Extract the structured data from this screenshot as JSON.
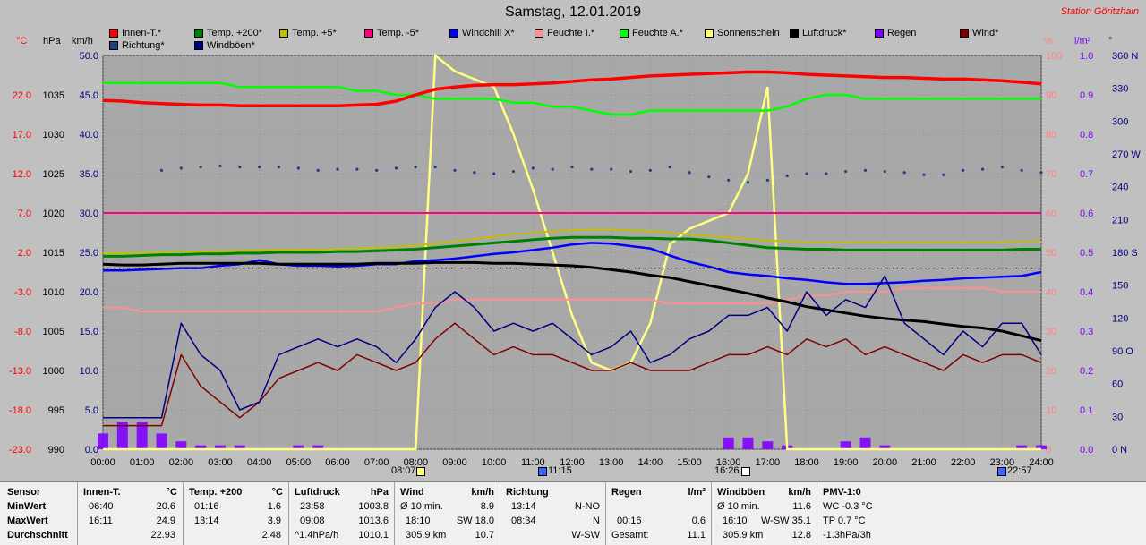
{
  "title": "Samstag, 12.01.2019",
  "station": "Station Göritzhain",
  "legend": [
    {
      "label": "Innen-T.*",
      "color": "#ff0000"
    },
    {
      "label": "Temp. +200*",
      "color": "#008000"
    },
    {
      "label": "Temp. +5*",
      "color": "#c0c000"
    },
    {
      "label": "Temp. -5*",
      "color": "#ff0080"
    },
    {
      "label": "Windchill X*",
      "color": "#0000ff"
    },
    {
      "label": "Feuchte I.*",
      "color": "#ff9090"
    },
    {
      "label": "Feuchte A.*",
      "color": "#00ff00"
    },
    {
      "label": "Sonnenschein",
      "color": "#ffff80"
    },
    {
      "label": "Luftdruck*",
      "color": "#000000"
    },
    {
      "label": "Regen",
      "color": "#8000ff"
    },
    {
      "label": "Wind*",
      "color": "#800000"
    },
    {
      "label": "Richtung*",
      "color": "#204080"
    },
    {
      "label": "Windböen*",
      "color": "#000080"
    }
  ],
  "unit_labels": {
    "degc": "°C",
    "hpa": "hPa",
    "kmh": "km/h",
    "pct": "%",
    "lm2": "l/m²",
    "deg": "°"
  },
  "axes": {
    "temp": [
      "22.0",
      "17.0",
      "12.0",
      "7.0",
      "2.0",
      "-3.0",
      "-8.0",
      "-13.0",
      "-18.0",
      "-23.0"
    ],
    "hpa": [
      "1035",
      "1030",
      "1025",
      "1020",
      "1015",
      "1010",
      "1005",
      "1000",
      "995",
      "990"
    ],
    "kmh": [
      "50.0",
      "45.0",
      "40.0",
      "35.0",
      "30.0",
      "25.0",
      "20.0",
      "15.0",
      "10.0",
      "5.0",
      "0.0"
    ],
    "pct": [
      "100",
      "90",
      "80",
      "70",
      "60",
      "50",
      "40",
      "30",
      "20",
      "10",
      "0"
    ],
    "lm2": [
      "1.0",
      "0.9",
      "0.8",
      "0.7",
      "0.6",
      "0.5",
      "0.4",
      "0.3",
      "0.2",
      "0.1",
      "0.0"
    ],
    "deg": [
      "360 N",
      "330",
      "300",
      "270 W",
      "240",
      "210",
      "180 S",
      "150",
      "120",
      "90 O",
      "60",
      "30",
      "0 N"
    ],
    "times": [
      "00:00",
      "01:00",
      "02:00",
      "03:00",
      "04:00",
      "05:00",
      "06:00",
      "07:00",
      "08:00",
      "09:00",
      "10:00",
      "11:00",
      "12:00",
      "13:00",
      "14:00",
      "15:00",
      "16:00",
      "17:00",
      "18:00",
      "19:00",
      "20:00",
      "21:00",
      "22:00",
      "23:00",
      "24:00"
    ]
  },
  "markers": {
    "sunrise": "08:07",
    "noon": "11:15",
    "sunset": "16:26",
    "moon": "22:57"
  },
  "chart_data": {
    "type": "line",
    "title": "Samstag, 12.01.2019",
    "x_hours": [
      0,
      0.5,
      1,
      1.5,
      2,
      2.5,
      3,
      3.5,
      4,
      4.5,
      5,
      5.5,
      6,
      6.5,
      7,
      7.5,
      8,
      8.5,
      9,
      9.5,
      10,
      10.5,
      11,
      11.5,
      12,
      12.5,
      13,
      13.5,
      14,
      14.5,
      15,
      15.5,
      16,
      16.5,
      17,
      17.5,
      18,
      18.5,
      19,
      19.5,
      20,
      20.5,
      21,
      21.5,
      22,
      22.5,
      23,
      23.5,
      24
    ],
    "series": [
      {
        "name": "Innen-T.*",
        "axis": "temp",
        "color": "#ff0000",
        "values": [
          21.3,
          21.2,
          21.0,
          20.9,
          20.8,
          20.7,
          20.7,
          20.6,
          20.6,
          20.6,
          20.6,
          20.6,
          20.6,
          20.7,
          20.8,
          21.2,
          22.0,
          22.7,
          23.0,
          23.2,
          23.3,
          23.3,
          23.4,
          23.5,
          23.7,
          23.9,
          24.0,
          24.2,
          24.4,
          24.5,
          24.6,
          24.7,
          24.8,
          24.9,
          24.9,
          24.8,
          24.6,
          24.5,
          24.4,
          24.3,
          24.2,
          24.2,
          24.1,
          24.0,
          24.0,
          23.9,
          23.8,
          23.6,
          23.4
        ]
      },
      {
        "name": "Temp. +200*",
        "axis": "temp",
        "color": "#008000",
        "values": [
          1.5,
          1.5,
          1.6,
          1.7,
          1.7,
          1.8,
          1.8,
          1.9,
          1.9,
          2.0,
          2.0,
          2.0,
          2.1,
          2.1,
          2.2,
          2.3,
          2.4,
          2.6,
          2.8,
          3.0,
          3.2,
          3.4,
          3.6,
          3.8,
          3.9,
          3.9,
          3.9,
          3.8,
          3.8,
          3.7,
          3.7,
          3.5,
          3.2,
          2.9,
          2.6,
          2.5,
          2.4,
          2.4,
          2.3,
          2.3,
          2.3,
          2.3,
          2.3,
          2.3,
          2.3,
          2.3,
          2.3,
          2.4,
          2.4
        ]
      },
      {
        "name": "Temp. +5*",
        "axis": "temp",
        "color": "#c0c000",
        "values": [
          1.9,
          1.9,
          2.0,
          2.0,
          2.1,
          2.1,
          2.2,
          2.2,
          2.3,
          2.3,
          2.3,
          2.4,
          2.4,
          2.5,
          2.6,
          2.7,
          2.9,
          3.1,
          3.4,
          3.7,
          4.0,
          4.3,
          4.5,
          4.7,
          4.8,
          4.9,
          4.9,
          4.8,
          4.7,
          4.5,
          4.3,
          4.1,
          3.9,
          3.7,
          3.5,
          3.4,
          3.3,
          3.3,
          3.3,
          3.3,
          3.3,
          3.3,
          3.3,
          3.3,
          3.3,
          3.3,
          3.3,
          3.4,
          3.4
        ]
      },
      {
        "name": "Temp. -5*",
        "axis": "temp",
        "color": "#ff0080",
        "values": [
          7.0,
          7.0,
          7.0,
          7.0,
          7.0,
          7.0,
          7.0,
          7.0,
          7.0,
          7.0,
          7.0,
          7.0,
          7.0,
          7.0,
          7.0,
          7.0,
          7.0,
          7.0,
          7.0,
          7.0,
          7.0,
          7.0,
          7.0,
          7.0,
          7.0,
          7.0,
          7.0,
          7.0,
          7.0,
          7.0,
          7.0,
          7.0,
          7.0,
          7.0,
          7.0,
          7.0,
          7.0,
          7.0,
          7.0,
          7.0,
          7.0,
          7.0,
          7.0,
          7.0,
          7.0,
          7.0,
          7.0,
          7.0,
          7.0
        ]
      },
      {
        "name": "Windchill X*",
        "axis": "temp",
        "color": "#0000ff",
        "values": [
          -0.3,
          -0.3,
          -0.2,
          -0.1,
          0.0,
          0.0,
          0.3,
          0.5,
          1.0,
          0.5,
          0.3,
          0.3,
          0.2,
          0.3,
          0.5,
          0.5,
          0.9,
          1.0,
          1.2,
          1.5,
          1.8,
          2.0,
          2.3,
          2.6,
          3.0,
          3.2,
          3.1,
          2.8,
          2.5,
          1.6,
          0.8,
          0.2,
          -0.5,
          -0.8,
          -1.0,
          -1.3,
          -1.5,
          -1.8,
          -2.0,
          -2.0,
          -1.9,
          -1.8,
          -1.6,
          -1.5,
          -1.3,
          -1.2,
          -1.1,
          -1.0,
          -0.5
        ]
      },
      {
        "name": "Feuchte I.*",
        "axis": "pct",
        "color": "#ff9090",
        "values": [
          36,
          36,
          35,
          35,
          35,
          35,
          35,
          35,
          35,
          35,
          35,
          35,
          35,
          35,
          35,
          36,
          37,
          37,
          38,
          38,
          38,
          38,
          38,
          38,
          38,
          38,
          38,
          38,
          38,
          37,
          37,
          37,
          37,
          37,
          37,
          38,
          39,
          39,
          40,
          40,
          40,
          41,
          41,
          41,
          41,
          41,
          40,
          40,
          40
        ]
      },
      {
        "name": "Feuchte A.*",
        "axis": "pct",
        "color": "#00ff00",
        "values": [
          93,
          93,
          93,
          93,
          93,
          93,
          93,
          92,
          92,
          92,
          92,
          92,
          92,
          91,
          91,
          90,
          90,
          89,
          89,
          89,
          89,
          88,
          88,
          87,
          87,
          86,
          85,
          85,
          86,
          86,
          86,
          86,
          86,
          86,
          86,
          87,
          89,
          90,
          90,
          89,
          89,
          89,
          89,
          89,
          89,
          89,
          89,
          89,
          89
        ]
      },
      {
        "name": "Sonnenschein",
        "axis": "kmh",
        "color": "#ffff80",
        "values": [
          0,
          0,
          0,
          0,
          0,
          0,
          0,
          0,
          0,
          0,
          0,
          0,
          0,
          0,
          0,
          0,
          0,
          50,
          48,
          47,
          46,
          40,
          33,
          25,
          17,
          11,
          10,
          11,
          16,
          26,
          28,
          29,
          30,
          35,
          46,
          0,
          0,
          0,
          0,
          0,
          0,
          0,
          0,
          0,
          0,
          0,
          0,
          0,
          0
        ]
      },
      {
        "name": "Luftdruck*",
        "axis": "hpa",
        "color": "#000000",
        "values": [
          1013.5,
          1013.4,
          1013.4,
          1013.5,
          1013.6,
          1013.6,
          1013.6,
          1013.6,
          1013.6,
          1013.5,
          1013.5,
          1013.5,
          1013.5,
          1013.5,
          1013.6,
          1013.6,
          1013.6,
          1013.7,
          1013.7,
          1013.7,
          1013.6,
          1013.6,
          1013.5,
          1013.4,
          1013.3,
          1013.1,
          1012.8,
          1012.5,
          1012.1,
          1011.8,
          1011.3,
          1010.8,
          1010.3,
          1009.8,
          1009.2,
          1008.7,
          1008.1,
          1007.7,
          1007.3,
          1006.9,
          1006.6,
          1006.4,
          1006.2,
          1005.9,
          1005.6,
          1005.4,
          1005.0,
          1004.4,
          1003.8
        ]
      },
      {
        "name": "Wind*",
        "axis": "kmh",
        "color": "#800000",
        "values": [
          3,
          3,
          3,
          3,
          12,
          8,
          6,
          4,
          6,
          9,
          10,
          11,
          10,
          12,
          11,
          10,
          11,
          14,
          16,
          14,
          12,
          13,
          12,
          12,
          11,
          10,
          10,
          11,
          10,
          10,
          10,
          11,
          12,
          12,
          13,
          12,
          14,
          13,
          14,
          12,
          13,
          12,
          11,
          10,
          12,
          11,
          12,
          12,
          11
        ]
      },
      {
        "name": "Windböen*",
        "axis": "kmh",
        "color": "#000080",
        "values": [
          4,
          4,
          4,
          4,
          16,
          12,
          10,
          5,
          6,
          12,
          13,
          14,
          13,
          14,
          13,
          11,
          14,
          18,
          20,
          18,
          15,
          16,
          15,
          16,
          14,
          12,
          13,
          15,
          11,
          12,
          14,
          15,
          17,
          17,
          18,
          15,
          20,
          17,
          19,
          18,
          22,
          16,
          14,
          12,
          15,
          13,
          16,
          16,
          12
        ]
      },
      {
        "name": "Regen",
        "axis": "lm2",
        "color": "#8000ff",
        "values": [
          0.04,
          0.07,
          0.07,
          0.04,
          0.02,
          0.01,
          0.01,
          0.01,
          0.0,
          0.0,
          0.01,
          0.01,
          0.0,
          0.0,
          0.0,
          0.0,
          0.0,
          0.0,
          0.0,
          0.0,
          0.0,
          0.0,
          0.0,
          0.0,
          0.0,
          0.0,
          0.0,
          0.0,
          0.0,
          0.0,
          0.0,
          0.0,
          0.03,
          0.03,
          0.02,
          0.01,
          0.0,
          0.0,
          0.02,
          0.03,
          0.01,
          0.0,
          0.0,
          0.0,
          0.0,
          0.0,
          0.0,
          0.01,
          0.01
        ]
      },
      {
        "name": "Richtung*",
        "axis": "deg",
        "color": "#204080",
        "values": [
          null,
          null,
          null,
          255,
          257,
          258,
          259,
          258,
          258,
          258,
          257,
          255,
          256,
          256,
          255,
          257,
          258,
          258,
          255,
          253,
          252,
          254,
          257,
          256,
          258,
          256,
          256,
          254,
          255,
          258,
          253,
          249,
          246,
          244,
          246,
          250,
          252,
          252,
          254,
          255,
          254,
          253,
          251,
          251,
          255,
          256,
          258,
          255,
          253
        ]
      }
    ]
  },
  "table": {
    "sensor": {
      "h": "Sensor",
      "r1": "MinWert",
      "r2": "MaxWert",
      "r3": "Durchschnitt"
    },
    "innen": {
      "h": "Innen-T.",
      "u": "°C",
      "t1": "06:40",
      "v1": "20.6",
      "t2": "16:11",
      "v2": "24.9",
      "v3": "22.93"
    },
    "temp200": {
      "h": "Temp. +200",
      "u": "°C",
      "t1": "01:16",
      "v1": "1.6",
      "t2": "13:14",
      "v2": "3.9",
      "v3": "2.48"
    },
    "druck": {
      "h": "Luftdruck",
      "u": "hPa",
      "t1": "23:58",
      "v1": "1003.8",
      "t2": "09:08",
      "v2": "1013.6",
      "a3": "^1.4hPa/h",
      "v3": "1010.1"
    },
    "wind": {
      "h": "Wind",
      "u": "km/h",
      "l1": "Ø 10 min.",
      "v1": "8.9",
      "t2": "18:10",
      "v2": "SW 18.0",
      "a3": "305.9 km",
      "v3": "10.7"
    },
    "richtung": {
      "h": "Richtung",
      "t1": "13:14",
      "v1": "N-NO",
      "t2": "08:34",
      "v2": "N",
      "v3": "W-SW"
    },
    "regen": {
      "h": "Regen",
      "u": "l/m²",
      "t2": "00:16",
      "v2": "0.6",
      "a3": "Gesamt:",
      "v3": "11.1"
    },
    "boeen": {
      "h": "Windböen",
      "u": "km/h",
      "l1": "Ø 10 min.",
      "v1": "11.6",
      "t2": "16:10",
      "v2": "W-SW 35.1",
      "a3": "305.9 km",
      "v3": "12.8"
    },
    "pmv": {
      "h": "PMV-1:0",
      "r1": "WC -0.3 °C",
      "r2": "TP 0.7 °C",
      "r3": "-1.3hPa/3h"
    }
  }
}
